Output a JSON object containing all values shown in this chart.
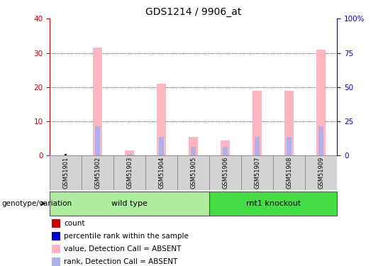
{
  "title": "GDS1214 / 9906_at",
  "samples": [
    "GSM51901",
    "GSM51902",
    "GSM51903",
    "GSM51904",
    "GSM51905",
    "GSM51906",
    "GSM51907",
    "GSM51908",
    "GSM51909"
  ],
  "value_absent": [
    0,
    31.5,
    1.5,
    21,
    5.5,
    4.5,
    19,
    19,
    31
  ],
  "rank_absent": [
    0,
    8.5,
    0.5,
    5.5,
    2.5,
    2.5,
    5.5,
    5.5,
    8.5
  ],
  "count_val": [
    0,
    0,
    0,
    0,
    0,
    0,
    0,
    0,
    0
  ],
  "percentile_val": [
    1,
    0,
    0,
    0,
    0,
    0,
    0,
    0,
    0
  ],
  "ylim_left": [
    0,
    40
  ],
  "ylim_right": [
    0,
    100
  ],
  "yticks_left": [
    0,
    10,
    20,
    30,
    40
  ],
  "yticks_right": [
    0,
    25,
    50,
    75,
    100
  ],
  "ytick_labels_right": [
    "0",
    "25",
    "50",
    "75",
    "100%"
  ],
  "groups": [
    {
      "label": "wild type",
      "start": 0,
      "end": 5,
      "color": "#aeed9e"
    },
    {
      "label": "rnt1 knockout",
      "start": 5,
      "end": 9,
      "color": "#44dd44"
    }
  ],
  "color_value_absent": "#ffb6c1",
  "color_rank_absent": "#b0b0e8",
  "color_count": "#cc0000",
  "color_percentile": "#0000cc",
  "bg_color": "#ffffff",
  "sample_bg": "#d3d3d3",
  "left_tick_color": "#cc0000",
  "right_tick_color": "#0000cc",
  "legend_items": [
    {
      "label": "count",
      "color": "#cc0000"
    },
    {
      "label": "percentile rank within the sample",
      "color": "#0000cc"
    },
    {
      "label": "value, Detection Call = ABSENT",
      "color": "#ffb6c1"
    },
    {
      "label": "rank, Detection Call = ABSENT",
      "color": "#b0b0e8"
    }
  ],
  "genotype_label": "genotype/variation"
}
